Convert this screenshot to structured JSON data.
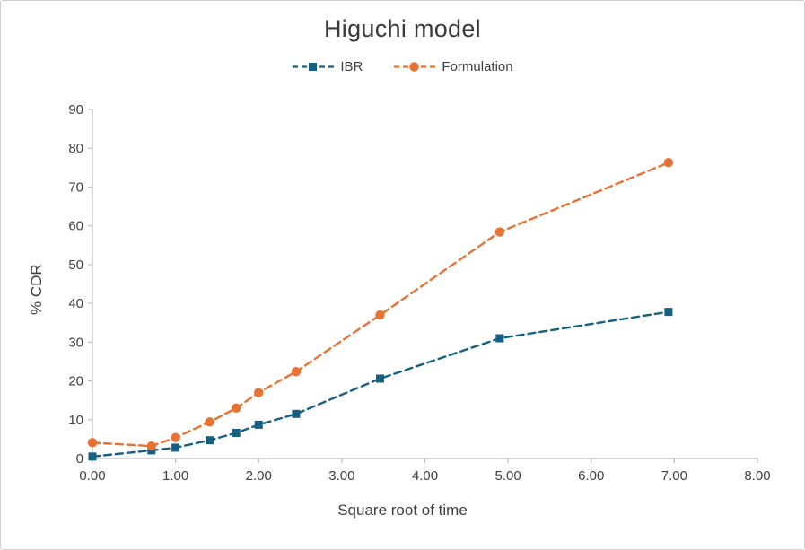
{
  "chart_data": {
    "type": "line",
    "title": "Higuchi model",
    "xlabel": "Square root of time",
    "ylabel": "% CDR",
    "xlim": [
      0,
      8
    ],
    "ylim": [
      0,
      90
    ],
    "x_tick_step": 1,
    "x_tick_decimals": 2,
    "y_tick_step": 10,
    "grid": false,
    "legend_position": "top",
    "axis_color": "#bfbfbf",
    "x": [
      0,
      0.71,
      1.0,
      1.41,
      1.73,
      2.0,
      2.45,
      3.46,
      4.9,
      6.93
    ],
    "series": [
      {
        "name": "IBR",
        "color": "#156082",
        "marker": "square",
        "dashed": true,
        "values": [
          0.5,
          2.1,
          2.8,
          4.7,
          6.6,
          8.7,
          11.5,
          20.6,
          31.0,
          37.8
        ]
      },
      {
        "name": "Formulation",
        "color": "#E97132",
        "marker": "circle",
        "dashed": true,
        "values": [
          4.1,
          3.2,
          5.4,
          9.4,
          13.0,
          17.0,
          22.4,
          37.0,
          58.4,
          76.3
        ]
      }
    ]
  }
}
